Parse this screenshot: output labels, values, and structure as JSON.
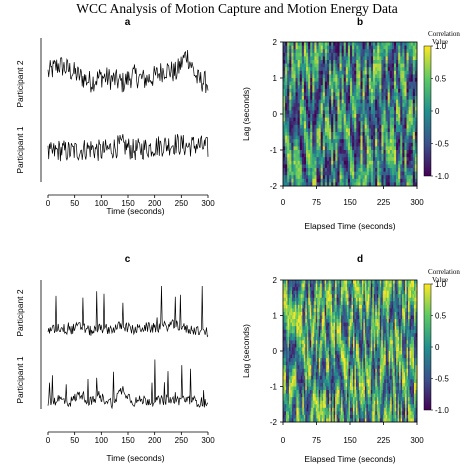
{
  "figure": {
    "title": "WCC Analysis of Motion Capture and Motion Energy Data"
  },
  "colors": {
    "line": "#000000",
    "viridis": [
      "#440154",
      "#3b528b",
      "#21908d",
      "#5dc963",
      "#fde725"
    ]
  },
  "chart_data": [
    {
      "panel": "a",
      "type": "line",
      "xlabel": "Time (seconds)",
      "xticks": [
        0,
        50,
        100,
        150,
        200,
        250,
        300
      ],
      "xlim": [
        0,
        300
      ],
      "series": [
        {
          "name": "Participant 2",
          "x": [
            0,
            20,
            40,
            60,
            80,
            100,
            120,
            140,
            160,
            180,
            200,
            220,
            240,
            260,
            280,
            300
          ],
          "values": [
            0.55,
            0.68,
            0.6,
            0.5,
            0.42,
            0.5,
            0.46,
            0.4,
            0.52,
            0.45,
            0.5,
            0.62,
            0.55,
            0.85,
            0.45,
            0.4
          ]
        },
        {
          "name": "Participant 1",
          "x": [
            0,
            20,
            40,
            60,
            80,
            100,
            120,
            140,
            160,
            180,
            200,
            220,
            240,
            260,
            280,
            300
          ],
          "values": [
            0.45,
            0.52,
            0.5,
            0.52,
            0.55,
            0.5,
            0.55,
            0.6,
            0.52,
            0.55,
            0.58,
            0.6,
            0.62,
            0.58,
            0.6,
            0.55
          ]
        }
      ]
    },
    {
      "panel": "b",
      "type": "heatmap",
      "xlabel": "Elapsed Time (seconds)",
      "ylabel": "Lag (seconds)",
      "xticks": [
        0,
        75,
        150,
        225,
        300
      ],
      "yticks": [
        -2,
        -1,
        0,
        1,
        2
      ],
      "xlim": [
        0,
        300
      ],
      "ylim": [
        -2,
        2
      ],
      "colorbar": {
        "title_line1": "Correlation",
        "title_line2": "Value",
        "ticks": [
          "1.0",
          "0.5",
          "0",
          "-0.5",
          "-1.0"
        ],
        "range": [
          -1,
          1
        ]
      }
    },
    {
      "panel": "c",
      "type": "line",
      "xlabel": "Time (seconds)",
      "xticks": [
        0,
        50,
        100,
        150,
        200,
        250,
        300
      ],
      "xlim": [
        0,
        300
      ],
      "series": [
        {
          "name": "Participant 2",
          "x": [
            0,
            20,
            40,
            60,
            80,
            100,
            120,
            140,
            160,
            180,
            200,
            220,
            240,
            260,
            280,
            300
          ],
          "values": [
            0.3,
            0.55,
            0.4,
            0.6,
            0.35,
            0.5,
            0.45,
            0.65,
            0.4,
            0.55,
            0.5,
            0.6,
            0.7,
            0.45,
            0.4,
            0.3
          ]
        },
        {
          "name": "Participant 1",
          "x": [
            0,
            20,
            40,
            60,
            80,
            100,
            120,
            140,
            160,
            180,
            200,
            220,
            240,
            260,
            280,
            300
          ],
          "values": [
            0.1,
            0.35,
            0.15,
            0.6,
            0.2,
            0.4,
            0.15,
            0.85,
            0.2,
            0.3,
            0.2,
            0.3,
            0.25,
            0.35,
            0.2,
            0.15
          ]
        }
      ]
    },
    {
      "panel": "d",
      "type": "heatmap",
      "xlabel": "Elapsed Time (seconds)",
      "ylabel": "Lag (seconds)",
      "xticks": [
        0,
        75,
        150,
        225,
        300
      ],
      "yticks": [
        -2,
        -1,
        0,
        1,
        2
      ],
      "xlim": [
        0,
        300
      ],
      "ylim": [
        -2,
        2
      ],
      "colorbar": {
        "title_line1": "Correlation",
        "title_line2": "Value",
        "ticks": [
          "1.0",
          "0.5",
          "0",
          "-0.5",
          "-1.0"
        ],
        "range": [
          -1,
          1
        ]
      }
    }
  ]
}
